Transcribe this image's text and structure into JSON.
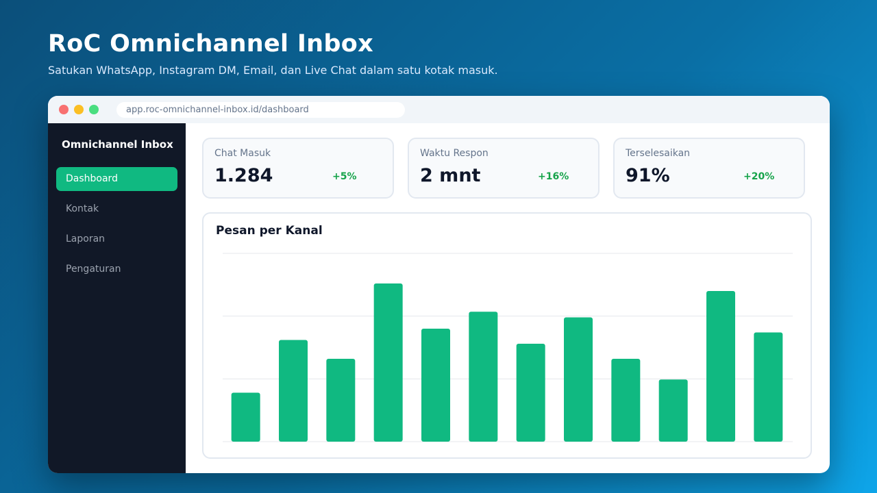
{
  "hero": {
    "title": "RoC Omnichannel Inbox",
    "subtitle": "Satukan WhatsApp, Instagram DM, Email, dan Live Chat dalam satu kotak masuk."
  },
  "browser": {
    "url": "app.roc-omnichannel-inbox.id/dashboard"
  },
  "sidebar": {
    "brand": "Omnichannel Inbox",
    "items": [
      {
        "label": "Dashboard",
        "active": true
      },
      {
        "label": "Kontak",
        "active": false
      },
      {
        "label": "Laporan",
        "active": false
      },
      {
        "label": "Pengaturan",
        "active": false
      }
    ]
  },
  "stats": [
    {
      "label": "Chat Masuk",
      "value": "1.284",
      "delta": "+5%"
    },
    {
      "label": "Waktu Respon",
      "value": "2 mnt",
      "delta": "+16%"
    },
    {
      "label": "Terselesaikan",
      "value": "91%",
      "delta": "+20%"
    }
  ],
  "colors": {
    "accent": "#10b981",
    "positive": "#16a34a",
    "sidebar_bg": "#111827"
  },
  "chart_data": {
    "type": "bar",
    "title": "Pesan per Kanal",
    "values": [
      26,
      54,
      44,
      84,
      60,
      69,
      52,
      66,
      44,
      33,
      80,
      58
    ],
    "ylim": [
      0,
      100
    ],
    "grid": true,
    "color": "#10b981"
  }
}
